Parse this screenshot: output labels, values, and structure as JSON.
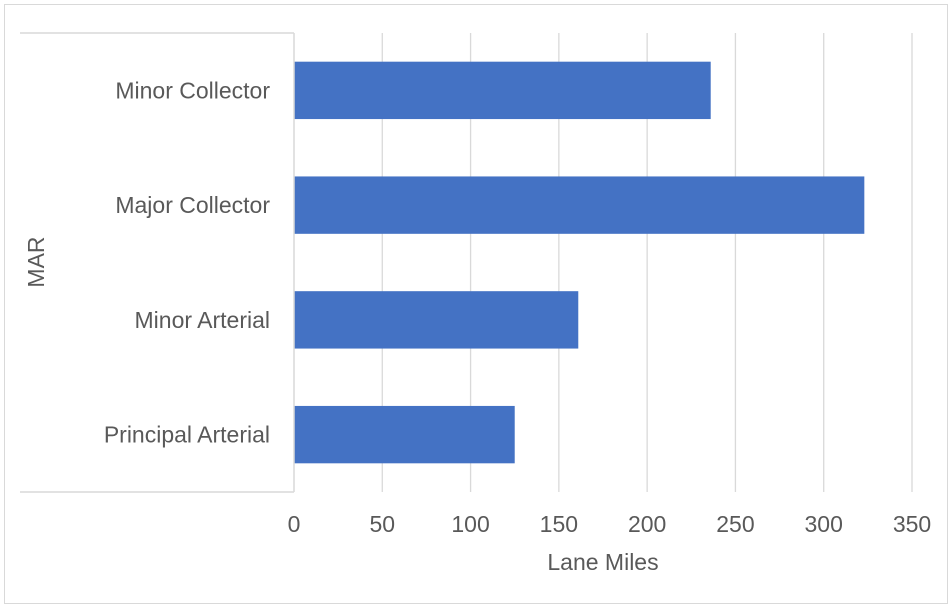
{
  "chart_data": {
    "type": "bar",
    "orientation": "horizontal",
    "title": "",
    "categories": [
      "Principal Arterial",
      "Minor Arterial",
      "Major Collector",
      "Minor Collector"
    ],
    "values": [
      125,
      161,
      323,
      236
    ],
    "xlabel": "Lane Miles",
    "ylabel": "MAR",
    "xlim": [
      0,
      350
    ],
    "xticks": [
      "0",
      "50",
      "100",
      "150",
      "200",
      "250",
      "300",
      "350"
    ],
    "grid": "vertical",
    "bar_color": "#4472c4",
    "legend": "none"
  }
}
